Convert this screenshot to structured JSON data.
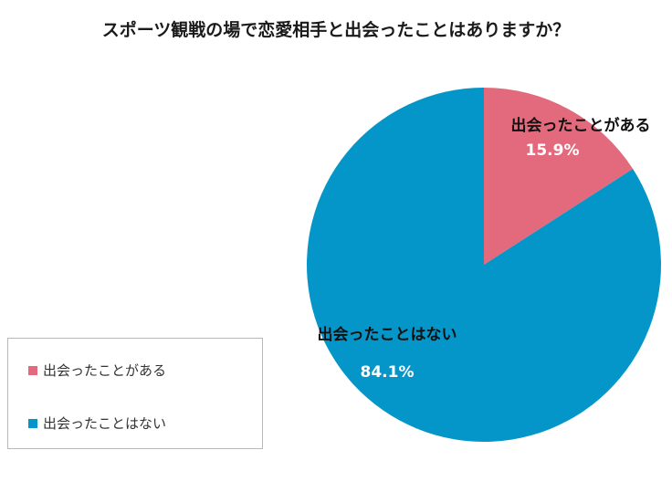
{
  "chart_data": {
    "type": "pie",
    "title": "スポーツ観戦の場で恋愛相手と出会ったことはありますか？",
    "slices": [
      {
        "label": "出会ったことがある",
        "value": 15.9,
        "value_label": "15.9%",
        "color": "#e36a7c"
      },
      {
        "label": "出会ったことはない",
        "value": 84.1,
        "value_label": "84.1%",
        "color": "#0596c9"
      }
    ],
    "start_angle_deg": 0,
    "direction": "clockwise",
    "legend_position": "bottom-left"
  }
}
